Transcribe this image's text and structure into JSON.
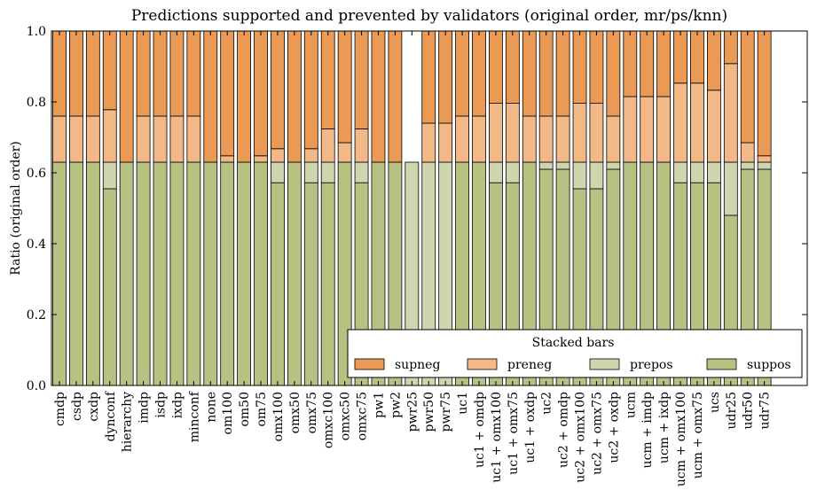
{
  "chart_data": {
    "type": "bar",
    "stacked": true,
    "title": "Predictions supported and prevented by validators (original order, mr/ps/knn)",
    "xlabel": "",
    "ylabel": "Ratio (original order)",
    "ylim": [
      0,
      1
    ],
    "yticks": [
      "0.0",
      "0.2",
      "0.4",
      "0.6",
      "0.8",
      "1.0"
    ],
    "grid": false,
    "legend": {
      "title": "Stacked bars",
      "position": "lower-right"
    },
    "categories": [
      "cmdp",
      "csdp",
      "cxdp",
      "dynconf",
      "hierarchy",
      "imdp",
      "isdp",
      "ixdp",
      "minconf",
      "none",
      "om100",
      "om50",
      "om75",
      "omx100",
      "omx50",
      "omx75",
      "omxc100",
      "omxc50",
      "omxc75",
      "pw1",
      "pw2",
      "pwr25",
      "pwr50",
      "pwr75",
      "uc1",
      "uc1 + omdp",
      "uc1 + omx100",
      "uc1 + omx75",
      "uc1 + oxdp",
      "uc2",
      "uc2 + omdp",
      "uc2 + omx100",
      "uc2 + omx75",
      "uc2 + oxdp",
      "ucm",
      "ucm + imdp",
      "ucm + ixdp",
      "ucm + omx100",
      "ucm + omx75",
      "ucs",
      "udr25",
      "udr50",
      "udr75"
    ],
    "series": [
      {
        "name": "suppos",
        "color": "#b5c282",
        "values": [
          0.63,
          0.63,
          0.63,
          0.555,
          0.63,
          0.63,
          0.63,
          0.63,
          0.63,
          0.63,
          0.63,
          0.63,
          0.63,
          0.572,
          0.63,
          0.572,
          0.572,
          0.63,
          0.572,
          0.63,
          0.63,
          0.0,
          0.0,
          0.0,
          0.63,
          0.63,
          0.572,
          0.572,
          0.63,
          0.61,
          0.61,
          0.555,
          0.555,
          0.61,
          0.63,
          0.63,
          0.63,
          0.572,
          0.572,
          0.572,
          0.48,
          0.61,
          0.61
        ]
      },
      {
        "name": "prepos",
        "color": "#cdd6ae",
        "values": [
          0.0,
          0.0,
          0.0,
          0.075,
          0.0,
          0.0,
          0.0,
          0.0,
          0.0,
          0.0,
          0.0,
          0.0,
          0.0,
          0.058,
          0.0,
          0.058,
          0.058,
          0.0,
          0.058,
          0.0,
          0.0,
          0.63,
          0.63,
          0.63,
          0.0,
          0.0,
          0.058,
          0.058,
          0.0,
          0.02,
          0.02,
          0.075,
          0.075,
          0.02,
          0.0,
          0.0,
          0.0,
          0.058,
          0.058,
          0.058,
          0.15,
          0.02,
          0.02
        ]
      },
      {
        "name": "preneg",
        "color": "#f2b887",
        "values": [
          0.13,
          0.13,
          0.13,
          0.148,
          0.0,
          0.13,
          0.13,
          0.13,
          0.13,
          0.0,
          0.018,
          0.0,
          0.018,
          0.038,
          0.0,
          0.038,
          0.094,
          0.055,
          0.094,
          0.0,
          0.0,
          0.0,
          0.11,
          0.11,
          0.13,
          0.13,
          0.166,
          0.166,
          0.13,
          0.13,
          0.13,
          0.166,
          0.166,
          0.13,
          0.185,
          0.185,
          0.185,
          0.223,
          0.223,
          0.203,
          0.278,
          0.055,
          0.018
        ]
      },
      {
        "name": "supneg",
        "color": "#eb9a55",
        "values": [
          0.24,
          0.24,
          0.24,
          0.222,
          0.37,
          0.24,
          0.24,
          0.24,
          0.24,
          0.37,
          0.352,
          0.37,
          0.352,
          0.332,
          0.37,
          0.332,
          0.276,
          0.315,
          0.276,
          0.37,
          0.37,
          0.0,
          0.26,
          0.26,
          0.24,
          0.24,
          0.204,
          0.204,
          0.24,
          0.24,
          0.24,
          0.204,
          0.204,
          0.24,
          0.185,
          0.185,
          0.185,
          0.147,
          0.147,
          0.167,
          0.092,
          0.315,
          0.352
        ]
      }
    ]
  }
}
